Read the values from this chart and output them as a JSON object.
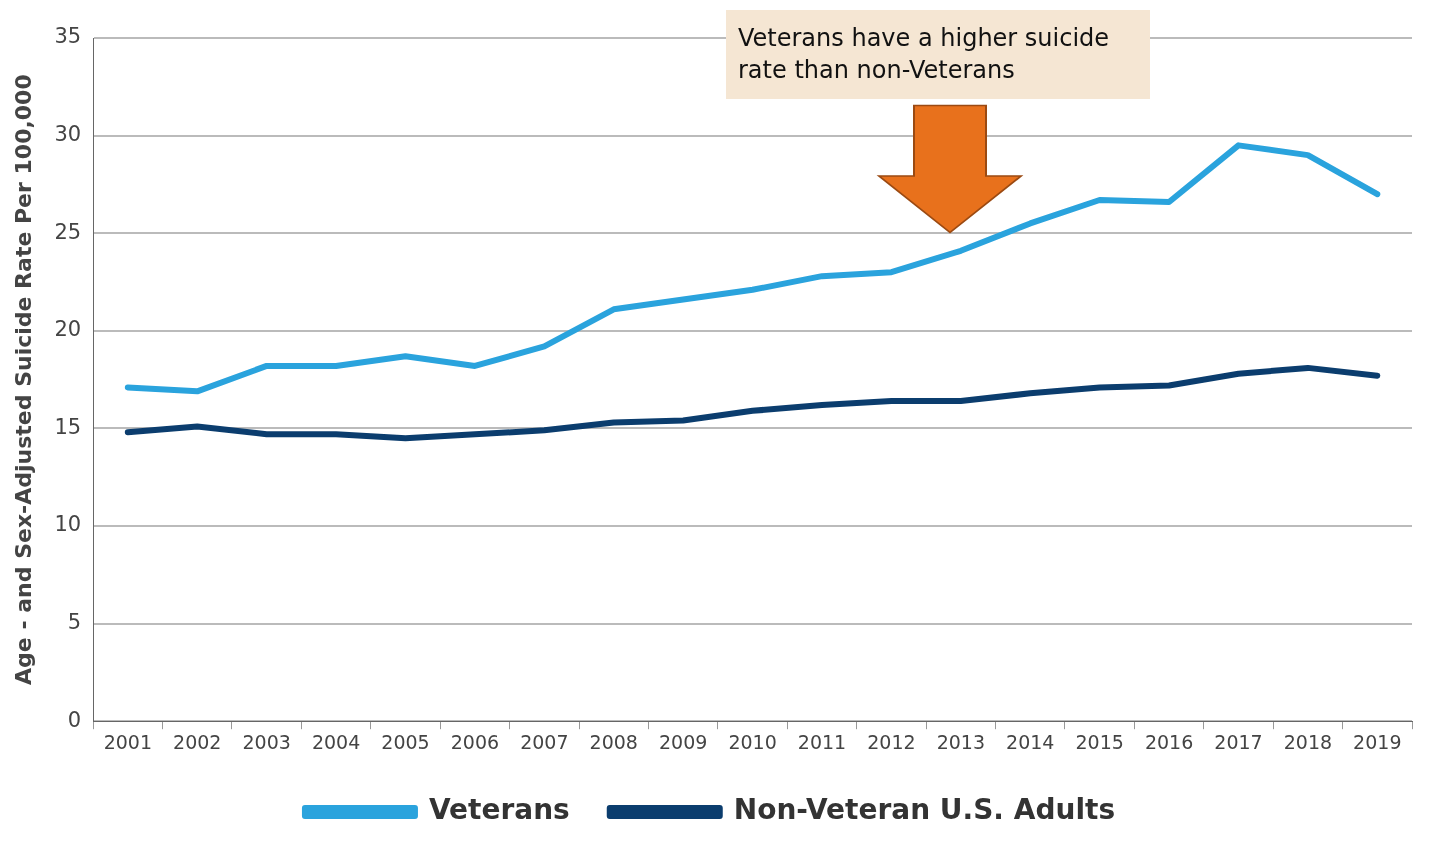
{
  "chart_data": {
    "type": "line",
    "ylabel": "Age - and Sex-Adjusted Suicide Rate Per 100,000",
    "categories": [
      "2001",
      "2002",
      "2003",
      "2004",
      "2005",
      "2006",
      "2007",
      "2008",
      "2009",
      "2010",
      "2011",
      "2012",
      "2013",
      "2014",
      "2015",
      "2016",
      "2017",
      "2018",
      "2019"
    ],
    "series": [
      {
        "name": "Veterans",
        "color": "#2aa3dd",
        "values": [
          17.1,
          16.9,
          18.2,
          18.2,
          18.7,
          18.2,
          19.2,
          21.1,
          21.6,
          22.1,
          22.8,
          23.0,
          24.1,
          25.5,
          26.7,
          26.6,
          29.5,
          29.0,
          27.0
        ]
      },
      {
        "name": "Non-Veteran U.S. Adults",
        "color": "#0b3d6e",
        "values": [
          14.8,
          15.1,
          14.7,
          14.7,
          14.5,
          14.7,
          14.9,
          15.3,
          15.4,
          15.9,
          16.2,
          16.4,
          16.4,
          16.8,
          17.1,
          17.2,
          17.8,
          18.1,
          17.7
        ]
      }
    ],
    "ylim": [
      0,
      35
    ],
    "yticks": [
      0,
      5,
      10,
      15,
      20,
      25,
      30,
      35
    ],
    "grid": "y",
    "legend": "bottom",
    "marker": "none",
    "line_style": "solid",
    "annotations": [
      "Veterans have a higher suicide rate than non-Veterans"
    ]
  }
}
